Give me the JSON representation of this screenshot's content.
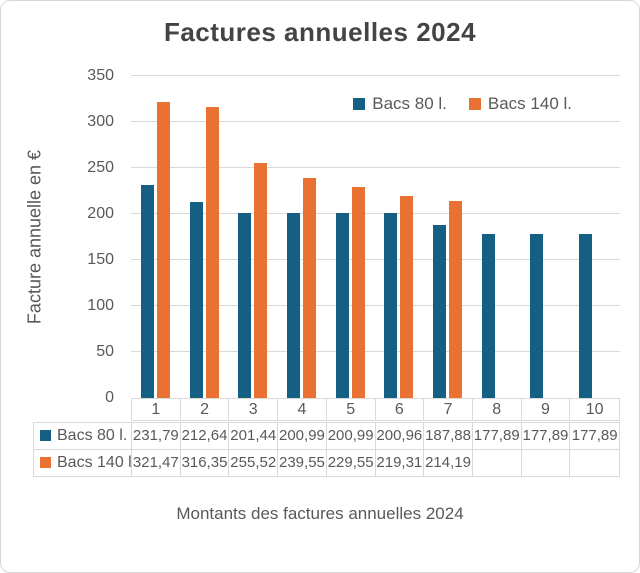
{
  "chart_data": {
    "type": "bar",
    "title": "Factures annuelles 2024",
    "xlabel": "Montants des factures annuelles 2024",
    "ylabel": "Facture annuelle en €",
    "categories": [
      "1",
      "2",
      "3",
      "4",
      "5",
      "6",
      "7",
      "8",
      "9",
      "10"
    ],
    "series": [
      {
        "name": "Bacs 80 l.",
        "color": "#156082",
        "values": [
          231.79,
          212.64,
          201.44,
          200.99,
          200.99,
          200.96,
          187.88,
          177.89,
          177.89,
          177.89
        ]
      },
      {
        "name": "Bacs 140 l.",
        "color": "#E97132",
        "values": [
          321.47,
          316.35,
          255.52,
          239.55,
          229.55,
          219.31,
          214.19,
          null,
          null,
          null
        ]
      }
    ],
    "ylim": [
      0,
      350
    ],
    "ytick_step": 50,
    "yticks": [
      0,
      50,
      100,
      150,
      200,
      250,
      300,
      350
    ],
    "grid": true,
    "legend_position": "inside-top-right",
    "data_table_shown": true,
    "decimal_separator": ","
  },
  "colors": {
    "text": "#595959",
    "title_text": "#444444",
    "gridline": "#D9D9D9",
    "table_border": "#D9D9D9",
    "frame_border": "#D6D6D6",
    "background": "#FFFFFF"
  }
}
